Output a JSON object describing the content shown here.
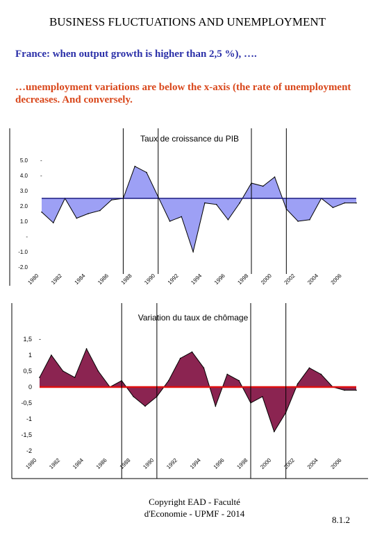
{
  "slide": {
    "title": "BUSINESS FLUCTUATIONS AND UNEMPLOYMENT",
    "line1": "France: when output growth is higher than 2,5 %), ….",
    "line2": "…unemployment variations are below the x-axis (the rate of unemployment decreases. And conversely.",
    "footer_line1": "Copyright EAD - Faculté",
    "footer_line2": "d'Economie - UPMF - 2014",
    "page_number": "8.1.2"
  },
  "chart_data": [
    {
      "type": "area",
      "title": "Taux de croissance du PIB",
      "x": [
        1980,
        1981,
        1982,
        1983,
        1984,
        1985,
        1986,
        1987,
        1988,
        1989,
        1990,
        1991,
        1992,
        1993,
        1994,
        1995,
        1996,
        1997,
        1998,
        1999,
        2000,
        2001,
        2002,
        2003,
        2004,
        2005,
        2006,
        2007
      ],
      "values": [
        1.6,
        0.9,
        2.5,
        1.2,
        1.5,
        1.7,
        2.4,
        2.5,
        4.6,
        4.2,
        2.6,
        1.0,
        1.3,
        -1.0,
        2.2,
        2.1,
        1.1,
        2.2,
        3.5,
        3.3,
        3.9,
        1.8,
        1.0,
        1.1,
        2.5,
        1.9,
        2.2,
        2.2
      ],
      "baseline": 2.5,
      "ylim": [
        -2.0,
        5.0
      ],
      "yticks": [
        "5.0",
        "4.0",
        "3.0",
        "2.0",
        "1.0",
        "-",
        "-1.0",
        "-2.0"
      ],
      "xticks": [
        "1980",
        "1982",
        "1984",
        "1986",
        "1988",
        "1990",
        "1992",
        "1994",
        "1996",
        "1998",
        "2000",
        "2002",
        "2004",
        "2006"
      ],
      "fill_color": "#9da0f5",
      "line_color": "#000000",
      "baseline_color": "#1a1a80"
    },
    {
      "type": "area",
      "title": "Variation du taux de chômage",
      "x": [
        1980,
        1981,
        1982,
        1983,
        1984,
        1985,
        1986,
        1987,
        1988,
        1989,
        1990,
        1991,
        1992,
        1993,
        1994,
        1995,
        1996,
        1997,
        1998,
        1999,
        2000,
        2001,
        2002,
        2003,
        2004,
        2005,
        2006,
        2007
      ],
      "values": [
        0.3,
        1.0,
        0.5,
        0.3,
        1.2,
        0.5,
        0.0,
        0.2,
        -0.3,
        -0.6,
        -0.3,
        0.2,
        0.9,
        1.1,
        0.6,
        -0.6,
        0.4,
        0.2,
        -0.5,
        -0.3,
        -1.4,
        -0.8,
        0.1,
        0.6,
        0.4,
        0.0,
        -0.1,
        -0.1
      ],
      "baseline": 0,
      "ylim": [
        -2.0,
        1.5
      ],
      "yticks": [
        "1,5",
        "1",
        "0,5",
        "0",
        "-0,5",
        "-1",
        "-1,5",
        "-2"
      ],
      "xticks": [
        "1980",
        "1982",
        "1984",
        "1986",
        "1988",
        "1990",
        "1992",
        "1994",
        "1996",
        "1998",
        "2000",
        "2002",
        "2004",
        "2006"
      ],
      "fill_color": "#8b2451",
      "line_color": "#000000",
      "baseline_color": "#e01010"
    }
  ],
  "vertical_markers": [
    1987,
    1990,
    1998,
    2001
  ]
}
